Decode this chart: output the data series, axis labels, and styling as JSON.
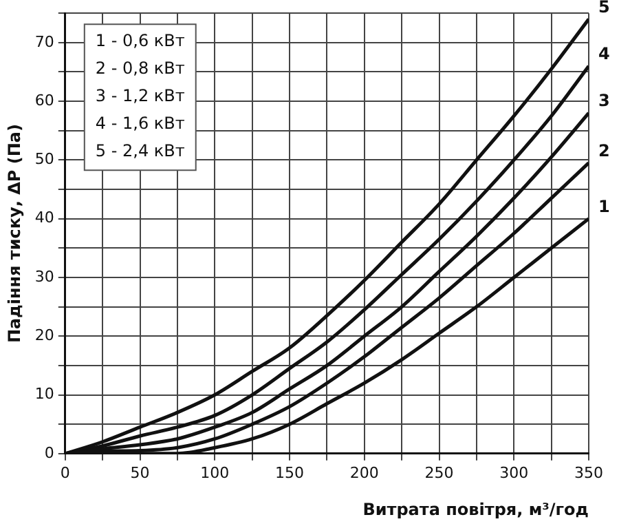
{
  "chart_data": {
    "type": "line",
    "xlabel": "Витрата повітря, м³/год",
    "ylabel": "Падіння тиску, ΔP (Па)",
    "x": [
      0,
      25,
      50,
      75,
      100,
      125,
      150,
      175,
      200,
      225,
      250,
      275,
      300,
      325,
      350
    ],
    "series": [
      {
        "name": "1",
        "color": "#111111",
        "values": [
          0,
          0,
          0,
          0,
          1,
          2.5,
          5,
          8.5,
          12,
          16,
          20.5,
          25,
          30,
          35,
          40
        ]
      },
      {
        "name": "2",
        "color": "#111111",
        "values": [
          0,
          0.4,
          0.5,
          1,
          2.5,
          5,
          8,
          12,
          16.5,
          21.5,
          26.5,
          32,
          37.5,
          43.5,
          49.5
        ]
      },
      {
        "name": "3",
        "color": "#111111",
        "values": [
          0,
          0.8,
          1.5,
          2.5,
          4.5,
          7,
          11,
          15,
          20,
          25,
          31,
          37,
          43.5,
          50.5,
          58
        ]
      },
      {
        "name": "4",
        "color": "#111111",
        "values": [
          0,
          1.3,
          3,
          4.5,
          6.5,
          10,
          14.5,
          19,
          24.5,
          30.5,
          36.5,
          43,
          50,
          57.5,
          66
        ]
      },
      {
        "name": "5",
        "color": "#111111",
        "values": [
          0,
          2,
          4.5,
          7,
          10,
          14,
          18,
          23.5,
          29.5,
          36,
          42.5,
          50,
          57.5,
          65.5,
          74
        ]
      }
    ],
    "annotations": [
      "1 - 0,6 кВт",
      "2 - 0,8 кВт",
      "3 - 1,2 кВт",
      "4 - 1,6 кВт",
      "5 - 2,4 кВт"
    ],
    "xlim": [
      0,
      350
    ],
    "ylim": [
      0,
      75
    ],
    "xticks": [
      0,
      {
        "value": 25,
        "label": null
      },
      50,
      {
        "value": 75,
        "label": null
      },
      100,
      {
        "value": 125,
        "label": null
      },
      150,
      {
        "value": 175,
        "label": null
      },
      200,
      {
        "value": 225,
        "label": null
      },
      250,
      {
        "value": 275,
        "label": null
      },
      300,
      {
        "value": 325,
        "label": null
      },
      350
    ],
    "yticks": [
      0,
      {
        "value": 5,
        "label": null
      },
      10,
      {
        "value": 15,
        "label": null
      },
      20,
      {
        "value": 25,
        "label": null
      },
      30,
      {
        "value": 35,
        "label": null
      },
      40,
      {
        "value": 45,
        "label": null
      },
      50,
      {
        "value": 55,
        "label": null
      },
      60,
      {
        "value": 65,
        "label": null
      },
      70,
      {
        "value": 75,
        "label": null
      }
    ],
    "grid": true,
    "legend": false,
    "marker": "none",
    "line_style": "solid"
  }
}
